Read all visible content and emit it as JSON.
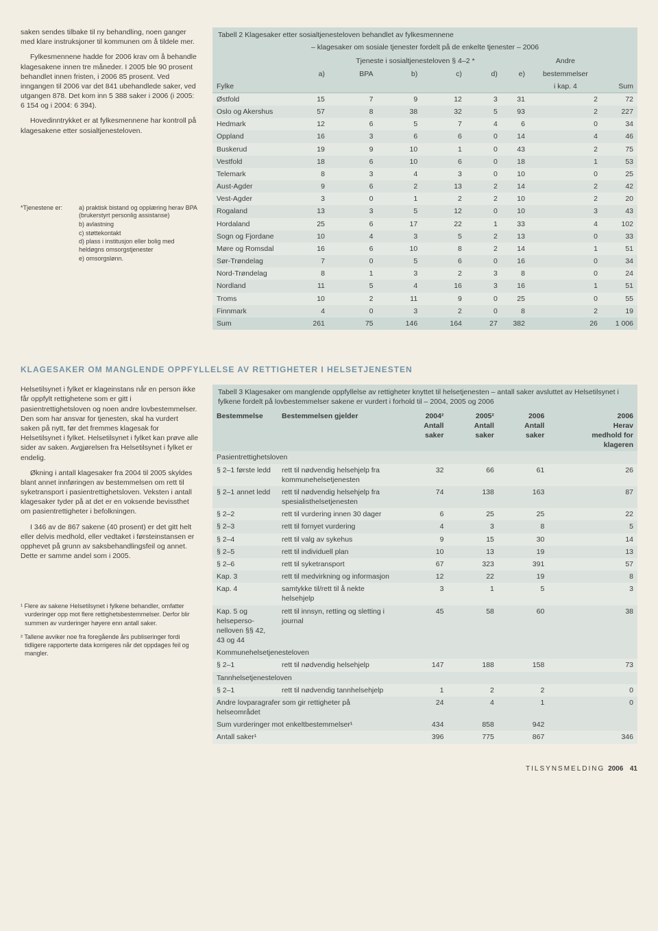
{
  "leftTop": {
    "p1": "saken sendes tilbake til ny behandling, noen ganger med klare instruksjoner til kommunen om å tildele mer.",
    "p2": "Fylkesmennene hadde for 2006 krav om å behandle klagesakene innen tre måneder. I 2005 ble 90 prosent behandlet innen fristen, i 2006 85 prosent. Ved inngangen til 2006 var det 841 ubehandlede saker, ved utgangen 878. Det kom inn 5 388 saker i 2006 (i 2005: 6 154 og i 2004: 6 394).",
    "p3": "Hovedinntrykket er at fylkesmennene har kontroll på klagesakene etter sosialtjenesteloven.",
    "fnLabel": "*Tjenestene er:",
    "fna": "a) praktisk bistand og opplæring herav BPA (brukerstyrt personlig assistanse)",
    "fnb": "b) avlastning",
    "fnc": "c) støttekontakt",
    "fnd": "d) plass i institusjon eller bolig med heldøgns omsorgstjenester",
    "fne": "e) omsorgslønn."
  },
  "table2": {
    "caption": "Tabell 2  Klagesaker etter sosialtjenesteloven behandlet av fylkesmennene",
    "subcaption": "– klagesaker om sosiale tjenester fordelt på de enkelte tjenester – 2006",
    "headGroup": "Tjeneste i sosialtjenesteloven § 4–2 *",
    "headAndre": "Andre",
    "headBest": "bestemmelser",
    "headKap": "i kap. 4",
    "cols": [
      "Fylke",
      "a)",
      "BPA",
      "b)",
      "c)",
      "d)",
      "e)",
      "",
      "Sum"
    ],
    "rows": [
      {
        "f": "Østfold",
        "a": 15,
        "bpa": 7,
        "b": 9,
        "c": 12,
        "d": 3,
        "e": 31,
        "x": 2,
        "sum": 72
      },
      {
        "f": "Oslo og Akershus",
        "a": 57,
        "bpa": 8,
        "b": 38,
        "c": 32,
        "d": 5,
        "e": 93,
        "x": 2,
        "sum": 227
      },
      {
        "f": "Hedmark",
        "a": 12,
        "bpa": 6,
        "b": 5,
        "c": 7,
        "d": 4,
        "e": 6,
        "x": 0,
        "sum": 34
      },
      {
        "f": "Oppland",
        "a": 16,
        "bpa": 3,
        "b": 6,
        "c": 6,
        "d": 0,
        "e": 14,
        "x": 4,
        "sum": 46
      },
      {
        "f": "Buskerud",
        "a": 19,
        "bpa": 9,
        "b": 10,
        "c": 1,
        "d": 0,
        "e": 43,
        "x": 2,
        "sum": 75
      },
      {
        "f": "Vestfold",
        "a": 18,
        "bpa": 6,
        "b": 10,
        "c": 6,
        "d": 0,
        "e": 18,
        "x": 1,
        "sum": 53
      },
      {
        "f": "Telemark",
        "a": 8,
        "bpa": 3,
        "b": 4,
        "c": 3,
        "d": 0,
        "e": 10,
        "x": 0,
        "sum": 25
      },
      {
        "f": "Aust-Agder",
        "a": 9,
        "bpa": 6,
        "b": 2,
        "c": 13,
        "d": 2,
        "e": 14,
        "x": 2,
        "sum": 42
      },
      {
        "f": "Vest-Agder",
        "a": 3,
        "bpa": 0,
        "b": 1,
        "c": 2,
        "d": 2,
        "e": 10,
        "x": 2,
        "sum": 20
      },
      {
        "f": "Rogaland",
        "a": 13,
        "bpa": 3,
        "b": 5,
        "c": 12,
        "d": 0,
        "e": 10,
        "x": 3,
        "sum": 43
      },
      {
        "f": "Hordaland",
        "a": 25,
        "bpa": 6,
        "b": 17,
        "c": 22,
        "d": 1,
        "e": 33,
        "x": 4,
        "sum": 102
      },
      {
        "f": "Sogn og Fjordane",
        "a": 10,
        "bpa": 4,
        "b": 3,
        "c": 5,
        "d": 2,
        "e": 13,
        "x": 0,
        "sum": 33
      },
      {
        "f": "Møre og Romsdal",
        "a": 16,
        "bpa": 6,
        "b": 10,
        "c": 8,
        "d": 2,
        "e": 14,
        "x": 1,
        "sum": 51
      },
      {
        "f": "Sør-Trøndelag",
        "a": 7,
        "bpa": 0,
        "b": 5,
        "c": 6,
        "d": 0,
        "e": 16,
        "x": 0,
        "sum": 34
      },
      {
        "f": "Nord-Trøndelag",
        "a": 8,
        "bpa": 1,
        "b": 3,
        "c": 2,
        "d": 3,
        "e": 8,
        "x": 0,
        "sum": 24
      },
      {
        "f": "Nordland",
        "a": 11,
        "bpa": 5,
        "b": 4,
        "c": 16,
        "d": 3,
        "e": 16,
        "x": 1,
        "sum": 51
      },
      {
        "f": "Troms",
        "a": 10,
        "bpa": 2,
        "b": 11,
        "c": 9,
        "d": 0,
        "e": 25,
        "x": 0,
        "sum": 55
      },
      {
        "f": "Finnmark",
        "a": 4,
        "bpa": 0,
        "b": 3,
        "c": 2,
        "d": 0,
        "e": 8,
        "x": 2,
        "sum": 19
      }
    ],
    "sumRow": {
      "f": "Sum",
      "a": 261,
      "bpa": 75,
      "b": 146,
      "c": 164,
      "d": 27,
      "e": 382,
      "x": 26,
      "sum": "1 006"
    }
  },
  "heading2": "KLAGESAKER OM MANGLENDE OPPFYLLELSE AV RETTIGHETER I HELSETJENESTEN",
  "leftBottom": {
    "p1": "Helsetilsynet i fylket er klageinstans når en person ikke får oppfylt rettighetene som er gitt i pasientrettighetsloven og noen andre lovbestemmelser. Den som har ansvar for tjenesten, skal ha vurdert saken på nytt, før det fremmes klagesak for Helsetilsynet i fylket. Helsetilsynet i fylket kan prøve alle sider av saken. Avgjørelsen fra Helsetilsynet i fylket er endelig.",
    "p2": "Økning i antall klagesaker fra 2004 til 2005 skyldes blant annet innføringen av bestemmelsen om rett til syketransport i pasientrettighetsloven. Veksten i antall klagesaker tyder på at det er en voksende bevissthet om pasientrettigheter i befolkningen.",
    "p3": "I 346 av de 867 sakene (40 prosent) er det gitt helt eller delvis medhold, eller vedtaket i førsteinstansen er opphevet på grunn av saksbehandlingsfeil og annet. Dette er samme andel som i 2005.",
    "fn1": "¹ Flere av sakene Helsetilsynet i fylkene behandler, omfatter vurderinger opp mot flere rettighetsbestemmelser. Derfor blir summen av vurderinger høyere enn antall saker.",
    "fn2": "² Tallene avviker noe fra foregående års publiseringer fordi tidligere rapporterte data korrigeres når det oppdages feil og mangler."
  },
  "table3": {
    "caption": "Tabell 3  Klagesaker om manglende oppfyllelse av rettigheter knyttet til helsetjenesten – antall saker avsluttet av Helsetilsynet i fylkene fordelt på lovbestemmelser sakene er vurdert i forhold til – 2004, 2005 og 2006",
    "cols": {
      "c1": "Bestemmelse",
      "c2": "Bestemmelsen gjelder",
      "c3a": "2004²",
      "c3b": "Antall",
      "c3c": "saker",
      "c4a": "2005²",
      "c4b": "Antall",
      "c4c": "saker",
      "c5a": "2006",
      "c5b": "Antall",
      "c5c": "saker",
      "c6a": "2006",
      "c6b": "Herav",
      "c6c": "medhold for",
      "c6d": "klageren"
    },
    "cat1": "Pasientrettighetsloven",
    "rows1": [
      {
        "b": "§ 2–1 første ledd",
        "d": "rett til nødvendig helsehjelp fra kommunehelsetjenesten",
        "v": [
          32,
          66,
          61,
          26
        ]
      },
      {
        "b": "§ 2–1 annet ledd",
        "d": "rett til nødvendig helsehjelp fra spesialisthelsetjenesten",
        "v": [
          74,
          138,
          163,
          87
        ]
      },
      {
        "b": "§ 2–2",
        "d": "rett til vurdering innen 30 dager",
        "v": [
          6,
          25,
          25,
          22
        ]
      },
      {
        "b": "§ 2–3",
        "d": "rett til fornyet vurdering",
        "v": [
          4,
          3,
          8,
          5
        ]
      },
      {
        "b": "§ 2–4",
        "d": "rett til valg av sykehus",
        "v": [
          9,
          15,
          30,
          14
        ]
      },
      {
        "b": "§ 2–5",
        "d": "rett til individuell plan",
        "v": [
          10,
          13,
          19,
          13
        ]
      },
      {
        "b": "§ 2–6",
        "d": "rett til syketransport",
        "v": [
          67,
          323,
          391,
          57
        ]
      },
      {
        "b": "Kap. 3",
        "d": "rett til medvirkning og informasjon",
        "v": [
          12,
          22,
          19,
          8
        ]
      },
      {
        "b": "Kap. 4",
        "d": "samtykke til/rett til å nekte helsehjelp",
        "v": [
          3,
          1,
          5,
          3
        ]
      },
      {
        "b": "Kap. 5 og helseperso- nelloven §§ 42, 43 og 44",
        "d": "rett til innsyn, retting og sletting i journal",
        "v": [
          45,
          58,
          60,
          38
        ]
      }
    ],
    "cat2": "Kommunehelsetjenesteloven",
    "rows2": [
      {
        "b": "§ 2–1",
        "d": "rett til nødvendig helsehjelp",
        "v": [
          147,
          188,
          158,
          73
        ]
      }
    ],
    "cat3": "Tannhelsetjenesteloven",
    "rows3": [
      {
        "b": "§ 2–1",
        "d": "rett til nødvendig tannhelsehjelp",
        "v": [
          1,
          2,
          2,
          0
        ]
      }
    ],
    "row_andre": {
      "b": "Andre lovparagrafer som gir rettigheter på helseområdet",
      "v": [
        24,
        4,
        1,
        0
      ]
    },
    "row_sum": {
      "b": "Sum vurderinger mot enkeltbestemmelser¹",
      "v": [
        434,
        858,
        942,
        ""
      ]
    },
    "row_antall": {
      "b": "Antall saker¹",
      "v": [
        396,
        775,
        867,
        346
      ]
    }
  },
  "footer": {
    "text": "TILSYNSMELDING",
    "year": "2006",
    "page": "41"
  }
}
